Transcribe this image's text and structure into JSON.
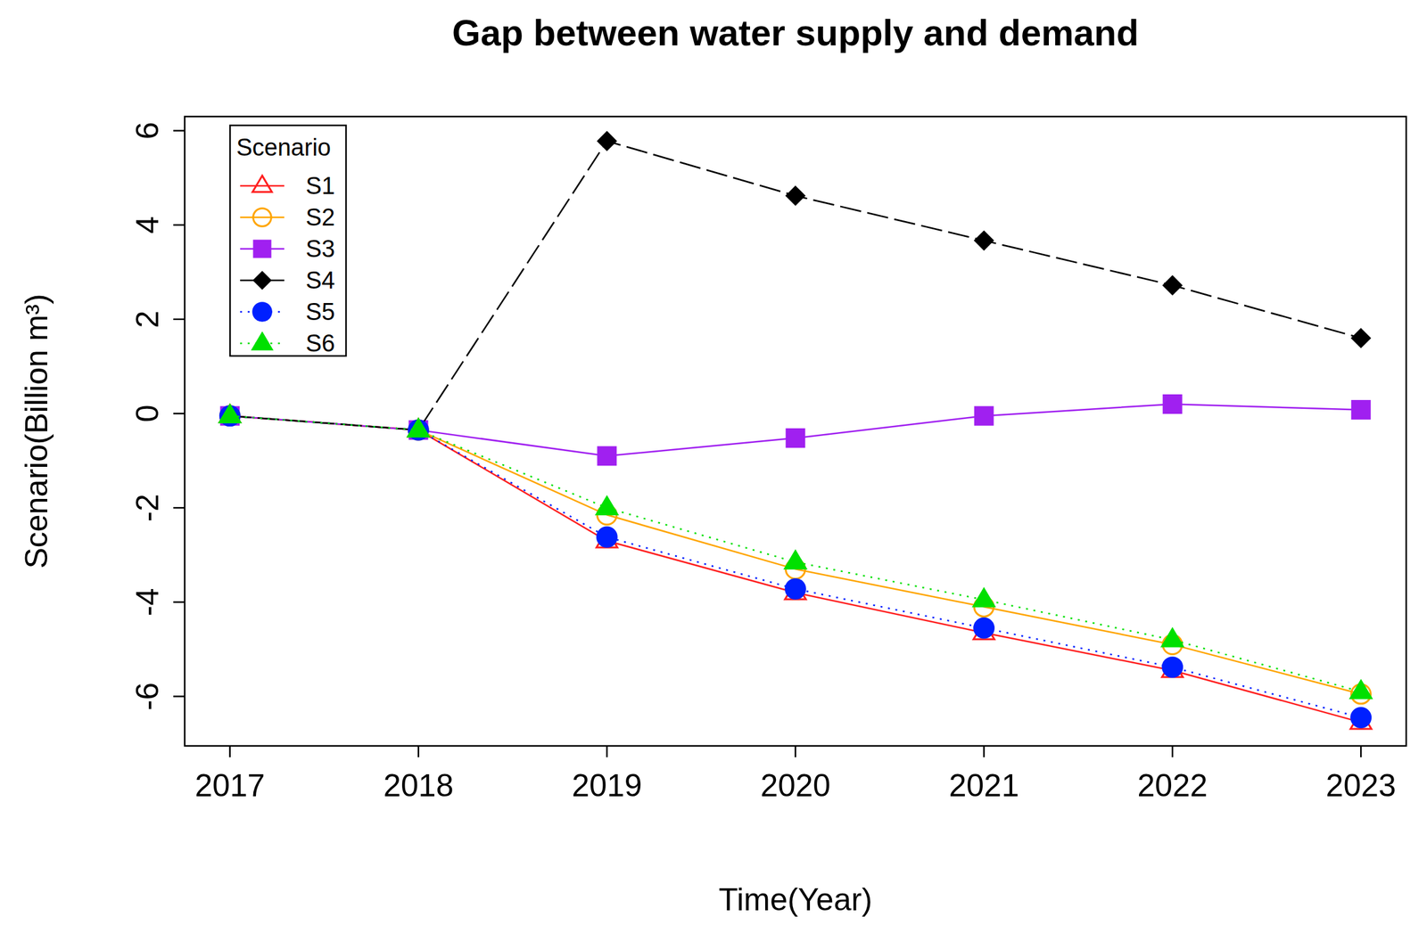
{
  "chart_data": {
    "type": "line",
    "title": "Gap between water supply and demand",
    "x_label": "Time(Year)",
    "y_label": "Scenario(Billion m³)",
    "legend_title": "Scenario",
    "x": [
      2017,
      2018,
      2019,
      2020,
      2021,
      2022,
      2023
    ],
    "series": [
      {
        "name": "S1",
        "color": "#ff2020",
        "marker": "triangle-open",
        "line_style": "solid",
        "values": [
          -0.05,
          -0.35,
          -2.7,
          -3.8,
          -4.65,
          -5.45,
          -6.55
        ]
      },
      {
        "name": "S2",
        "color": "#ffa500",
        "marker": "circle-open",
        "line_style": "solid",
        "values": [
          -0.05,
          -0.35,
          -2.15,
          -3.3,
          -4.1,
          -4.9,
          -5.95
        ]
      },
      {
        "name": "S3",
        "color": "#a020f0",
        "marker": "square",
        "line_style": "solid",
        "values": [
          -0.05,
          -0.35,
          -0.9,
          -0.52,
          -0.05,
          0.2,
          0.08
        ]
      },
      {
        "name": "S4",
        "color": "#000000",
        "marker": "diamond",
        "line_style": "dashed",
        "values": [
          -0.05,
          -0.35,
          5.78,
          4.62,
          3.67,
          2.72,
          1.6
        ]
      },
      {
        "name": "S5",
        "color": "#0020ff",
        "marker": "circle",
        "line_style": "dotted",
        "values": [
          -0.05,
          -0.35,
          -2.62,
          -3.72,
          -4.55,
          -5.38,
          -6.45
        ]
      },
      {
        "name": "S6",
        "color": "#00e000",
        "marker": "triangle",
        "line_style": "dotted",
        "values": [
          -0.05,
          -0.35,
          -2.0,
          -3.15,
          -3.95,
          -4.8,
          -5.9
        ]
      }
    ],
    "xlim": [
      2016.76,
      2023.24
    ],
    "ylim": [
      -7.05,
      6.3
    ],
    "xticks": [
      2017,
      2018,
      2019,
      2020,
      2021,
      2022,
      2023
    ],
    "yticks": [
      -6,
      -4,
      -2,
      0,
      2,
      4,
      6
    ],
    "grid": false,
    "legend": "top-left"
  }
}
